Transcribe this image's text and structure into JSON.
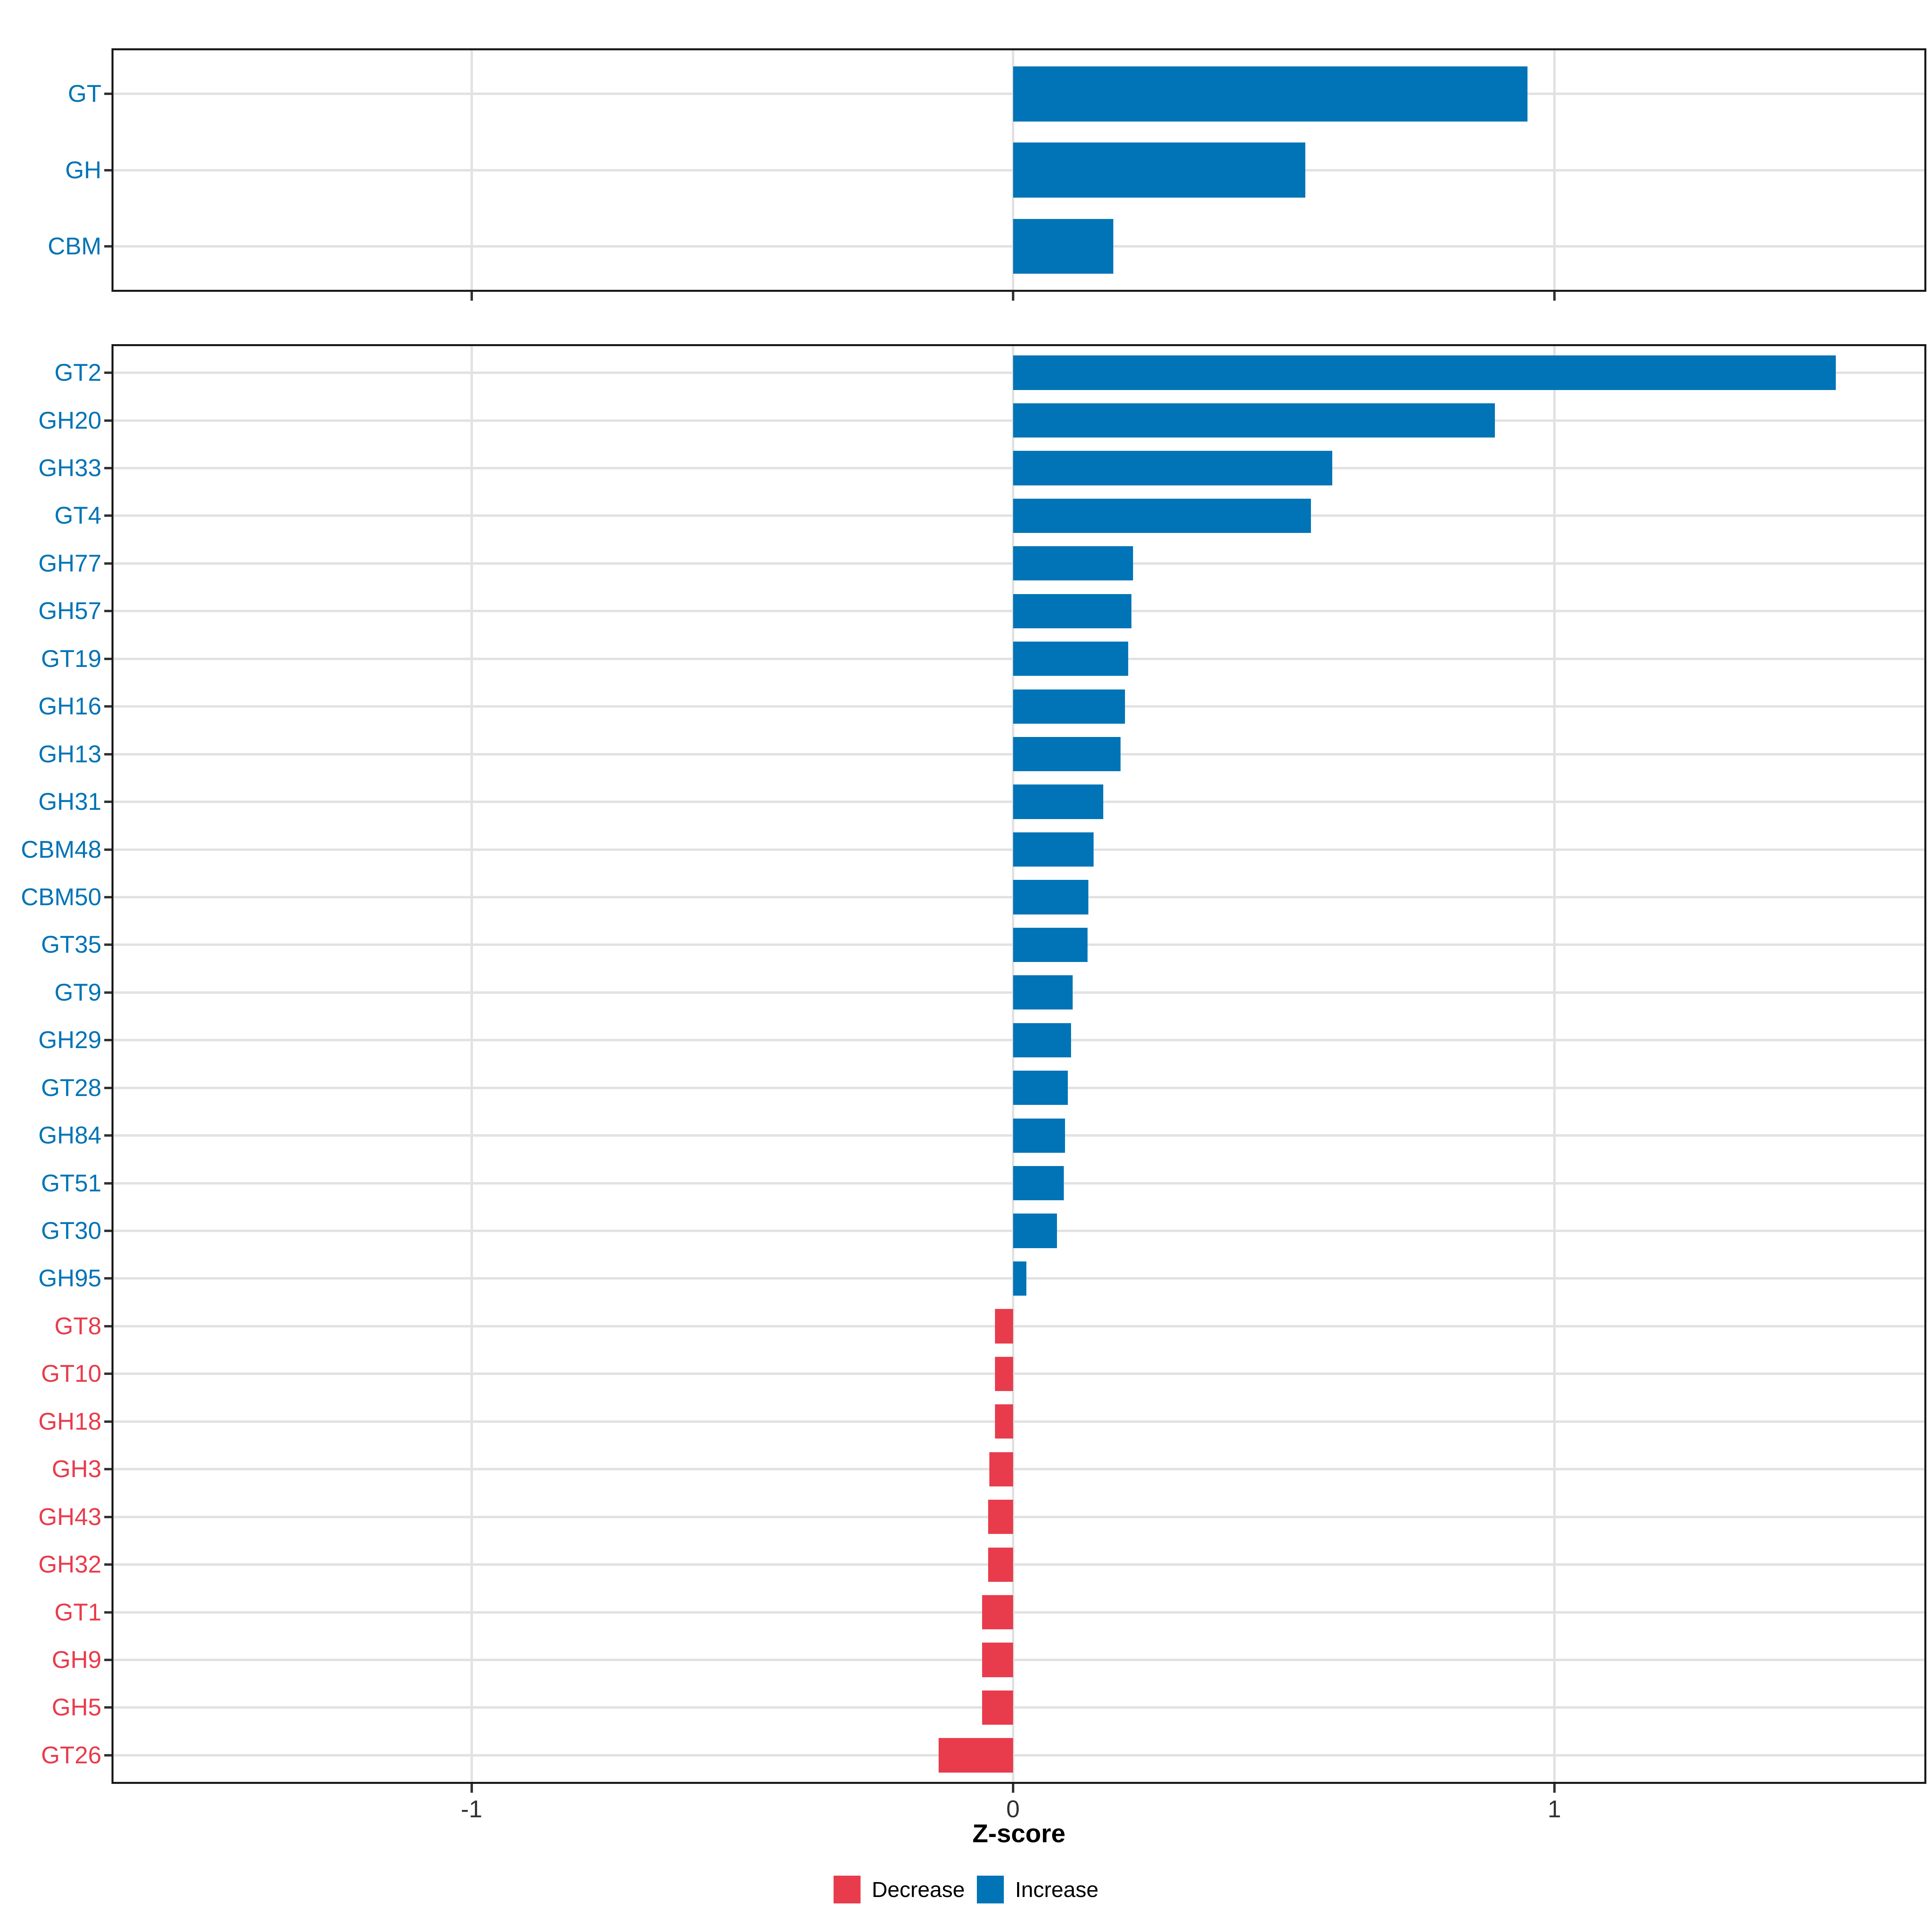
{
  "figure": {
    "axis_title": "Z-score",
    "x_ticks": [
      "-1",
      "0",
      "1"
    ],
    "x_tick_values": [
      -1,
      0,
      1
    ],
    "legend": [
      {
        "label": "Decrease",
        "color": "#e83c4c"
      },
      {
        "label": "Increase",
        "color": "#0074b6"
      }
    ],
    "colors": {
      "increase": "#0074b6",
      "decrease": "#e83c4c",
      "gridline": "#e2e2e2",
      "panel_border": "#1a1a1a",
      "tick": "#333333",
      "x_tick_text": "#303030"
    }
  },
  "chart_data": [
    {
      "type": "bar",
      "orientation": "horizontal",
      "panel": "top",
      "title": "",
      "xlabel": "",
      "ylabel": "",
      "xlim": [
        -1.665,
        1.687
      ],
      "grid": true,
      "show_x_labels": false,
      "categories": [
        "GT",
        "GH",
        "CBM"
      ],
      "values": [
        0.95,
        0.54,
        0.185
      ],
      "directions": [
        "increase",
        "increase",
        "increase"
      ]
    },
    {
      "type": "bar",
      "orientation": "horizontal",
      "panel": "bottom",
      "title": "",
      "xlabel": "Z-score",
      "ylabel": "",
      "xlim": [
        -1.665,
        1.687
      ],
      "grid": true,
      "show_x_labels": true,
      "legend_position": "bottom",
      "categories": [
        "GT2",
        "GH20",
        "GH33",
        "GT4",
        "GH77",
        "GH57",
        "GT19",
        "GH16",
        "GH13",
        "GH31",
        "CBM48",
        "CBM50",
        "GT35",
        "GT9",
        "GH29",
        "GT28",
        "GH84",
        "GT51",
        "GT30",
        "GH95",
        "GT8",
        "GT10",
        "GH18",
        "GH3",
        "GH43",
        "GH32",
        "GT1",
        "GH9",
        "GH5",
        "GT26"
      ],
      "values": [
        1.52,
        0.89,
        0.59,
        0.55,
        0.222,
        0.219,
        0.213,
        0.207,
        0.199,
        0.167,
        0.149,
        0.139,
        0.138,
        0.11,
        0.107,
        0.101,
        0.096,
        0.094,
        0.081,
        0.025,
        -0.033,
        -0.033,
        -0.033,
        -0.044,
        -0.046,
        -0.046,
        -0.057,
        -0.057,
        -0.057,
        -0.137
      ],
      "directions": [
        "increase",
        "increase",
        "increase",
        "increase",
        "increase",
        "increase",
        "increase",
        "increase",
        "increase",
        "increase",
        "increase",
        "increase",
        "increase",
        "increase",
        "increase",
        "increase",
        "increase",
        "increase",
        "increase",
        "increase",
        "decrease",
        "decrease",
        "decrease",
        "decrease",
        "decrease",
        "decrease",
        "decrease",
        "decrease",
        "decrease",
        "decrease"
      ]
    }
  ]
}
